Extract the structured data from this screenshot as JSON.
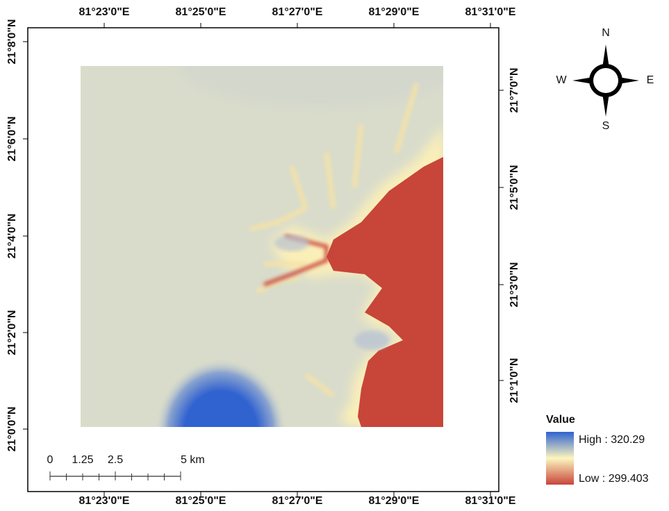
{
  "map": {
    "coordinates": {
      "top": [
        "81°23'0\"E",
        "81°25'0\"E",
        "81°27'0\"E",
        "81°29'0\"E",
        "81°31'0\"E"
      ],
      "bottom": [
        "81°23'0\"E",
        "81°25'0\"E",
        "81°27'0\"E",
        "81°29'0\"E",
        "81°31'0\"E"
      ],
      "left": [
        "21°8'0\"N",
        "21°6'0\"N",
        "21°4'0\"N",
        "21°2'0\"N",
        "21°0'0\"N"
      ],
      "right": [
        "21°7'0\"N",
        "21°5'0\"N",
        "21°3'0\"N",
        "21°1'0\"N"
      ]
    },
    "compass": {
      "north": "N",
      "west": "W",
      "east": "E",
      "south": "S"
    },
    "legend": {
      "title": "Value",
      "high": "High : 320.29",
      "low": "Low : 299.403"
    },
    "scale_bar": {
      "labels": [
        "0",
        "1.25",
        "2.5",
        "5 km"
      ]
    }
  }
}
